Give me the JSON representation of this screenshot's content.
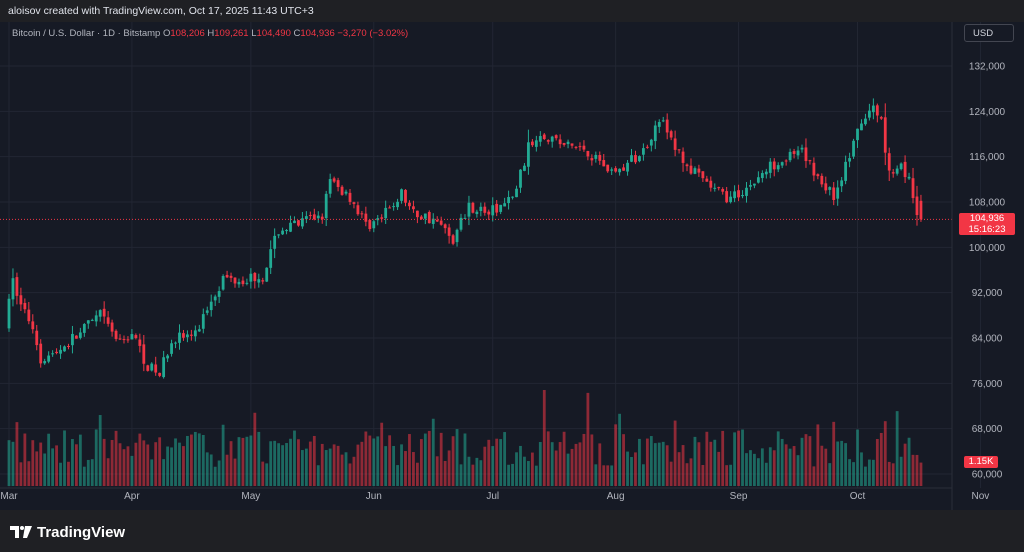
{
  "attribution": "aloisov created with TradingView.com, Oct 17, 2025 11:43 UTC+3",
  "header": {
    "symbol": "Bitcoin / U.S. Dollar · 1D · Bitstamp",
    "open_label": "O",
    "open": "108,206",
    "high_label": "H",
    "high": "109,261",
    "low_label": "L",
    "low": "104,490",
    "close_label": "C",
    "close": "104,936",
    "change": "−3,270 (−3.02%)"
  },
  "currency_button": "USD",
  "last_price": {
    "price": "104,936",
    "countdown": "15:16:23"
  },
  "volume_badge": "1.15K",
  "brand": "TradingView",
  "colors": {
    "up": "#22ab94",
    "down": "#f23645",
    "background": "#161a25",
    "grid": "#222633",
    "axis_text": "#b2b5be"
  },
  "chart_data": {
    "type": "candlestick",
    "title": "Bitcoin / U.S. Dollar · 1D · Bitstamp",
    "ylim": [
      58000,
      138000
    ],
    "y_ticks": [
      60000,
      68000,
      76000,
      84000,
      92000,
      100000,
      108000,
      116000,
      124000,
      132000
    ],
    "x_ticks": [
      {
        "label": "Mar",
        "date": "2025-03-01"
      },
      {
        "label": "Apr",
        "date": "2025-04-01"
      },
      {
        "label": "May",
        "date": "2025-05-01"
      },
      {
        "label": "Jun",
        "date": "2025-06-01"
      },
      {
        "label": "Jul",
        "date": "2025-07-01"
      },
      {
        "label": "Aug",
        "date": "2025-08-01"
      },
      {
        "label": "Sep",
        "date": "2025-09-01"
      },
      {
        "label": "Oct",
        "date": "2025-10-01"
      },
      {
        "label": "Nov",
        "date": "2025-11-01"
      }
    ],
    "grid": true,
    "last_price_line": 104936,
    "series": [
      {
        "name": "price",
        "anchors": [
          [
            "2025-03-01",
            86000
          ],
          [
            "2025-03-03",
            94000
          ],
          [
            "2025-03-05",
            90000
          ],
          [
            "2025-03-08",
            86000
          ],
          [
            "2025-03-10",
            80500
          ],
          [
            "2025-03-13",
            81000
          ],
          [
            "2025-03-20",
            85000
          ],
          [
            "2025-03-25",
            88000
          ],
          [
            "2025-03-30",
            83000
          ],
          [
            "2025-04-02",
            85000
          ],
          [
            "2025-04-06",
            79000
          ],
          [
            "2025-04-09",
            77500
          ],
          [
            "2025-04-12",
            84000
          ],
          [
            "2025-04-18",
            84500
          ],
          [
            "2025-04-22",
            91000
          ],
          [
            "2025-04-25",
            94500
          ],
          [
            "2025-04-30",
            94500
          ],
          [
            "2025-05-05",
            95000
          ],
          [
            "2025-05-09",
            103000
          ],
          [
            "2025-05-14",
            104000
          ],
          [
            "2025-05-20",
            106000
          ],
          [
            "2025-05-22",
            111500
          ],
          [
            "2025-05-27",
            109000
          ],
          [
            "2025-05-31",
            104000
          ],
          [
            "2025-06-04",
            105000
          ],
          [
            "2025-06-09",
            109500
          ],
          [
            "2025-06-12",
            106000
          ],
          [
            "2025-06-17",
            105000
          ],
          [
            "2025-06-22",
            101500
          ],
          [
            "2025-06-26",
            107500
          ],
          [
            "2025-07-01",
            106000
          ],
          [
            "2025-07-07",
            108500
          ],
          [
            "2025-07-11",
            117500
          ],
          [
            "2025-07-14",
            120500
          ],
          [
            "2025-07-20",
            118000
          ],
          [
            "2025-07-25",
            117500
          ],
          [
            "2025-08-01",
            113500
          ],
          [
            "2025-08-03",
            113500
          ],
          [
            "2025-08-09",
            117000
          ],
          [
            "2025-08-13",
            123000
          ],
          [
            "2025-08-17",
            117500
          ],
          [
            "2025-08-21",
            113500
          ],
          [
            "2025-08-26",
            110500
          ],
          [
            "2025-08-31",
            108500
          ],
          [
            "2025-09-05",
            111000
          ],
          [
            "2025-09-12",
            115500
          ],
          [
            "2025-09-18",
            116500
          ],
          [
            "2025-09-22",
            112500
          ],
          [
            "2025-09-26",
            109000
          ],
          [
            "2025-10-01",
            118000
          ],
          [
            "2025-10-03",
            122000
          ],
          [
            "2025-10-06",
            124500
          ],
          [
            "2025-10-08",
            122500
          ],
          [
            "2025-10-10",
            113000
          ],
          [
            "2025-10-13",
            115000
          ],
          [
            "2025-10-15",
            111500
          ],
          [
            "2025-10-16",
            108206
          ],
          [
            "2025-10-17",
            104936
          ]
        ]
      },
      {
        "name": "volume",
        "max_tick": "1.15K",
        "spikes": [
          {
            "date": "2025-07-14",
            "relative": 1.0
          },
          {
            "date": "2025-07-25",
            "relative": 0.97
          },
          {
            "date": "2025-10-11",
            "relative": 0.78
          }
        ]
      }
    ],
    "last_candle": {
      "date": "2025-10-17",
      "open": 108206,
      "high": 109261,
      "low": 104490,
      "close": 104936
    }
  }
}
